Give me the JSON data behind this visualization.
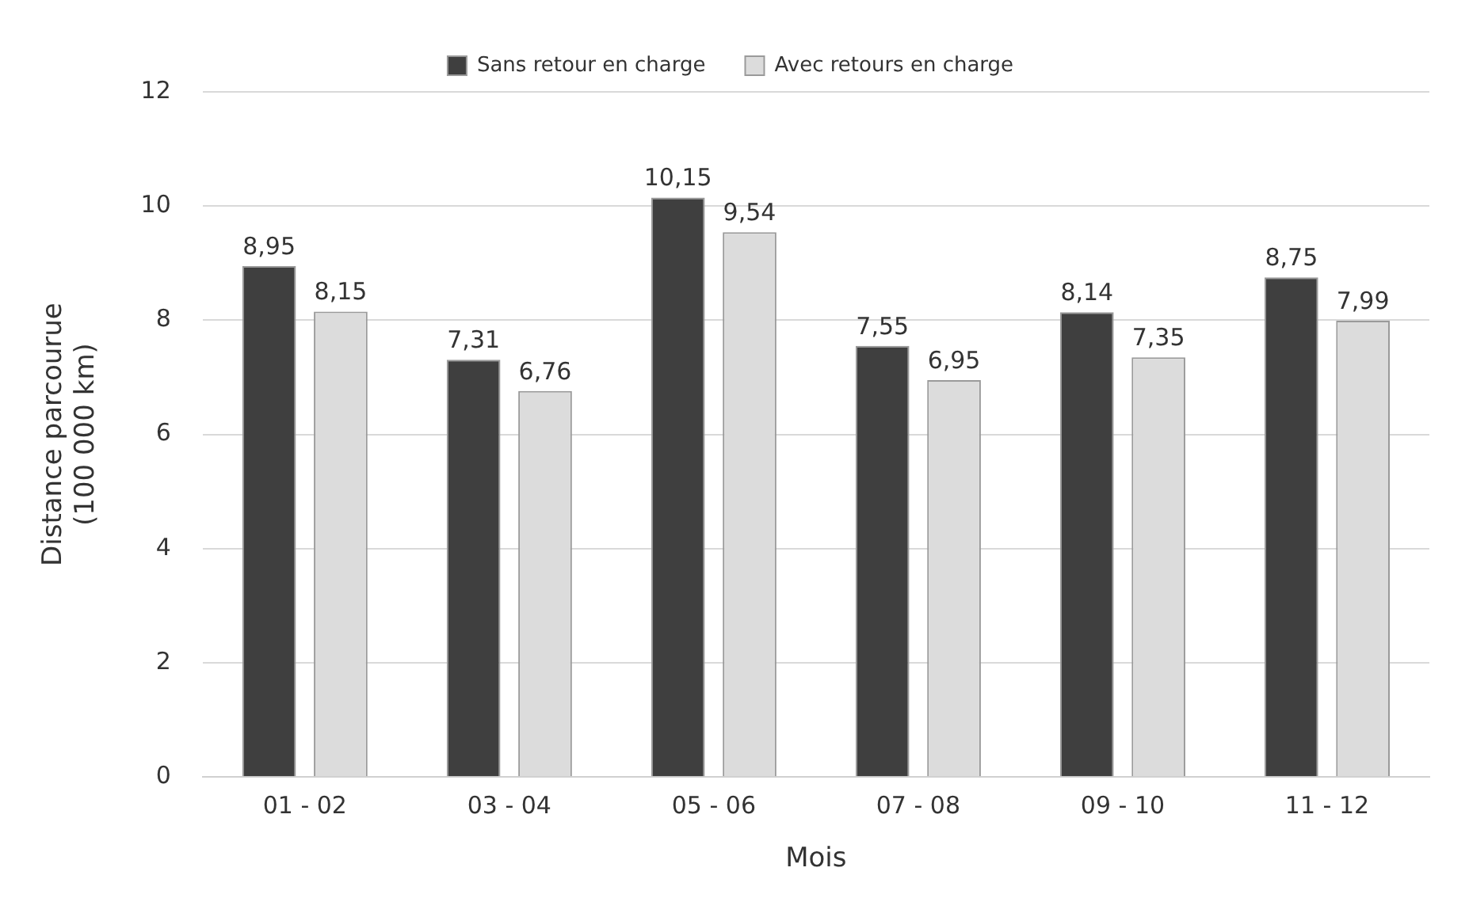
{
  "chart_data": {
    "type": "bar",
    "xlabel": "Mois",
    "ylabel": "Distance parcourue\n(100 000 km)",
    "categories": [
      "01 - 02",
      "03 - 04",
      "05 - 06",
      "07 - 08",
      "09 - 10",
      "11 - 12"
    ],
    "series": [
      {
        "name": "Sans retour en charge",
        "color": "#3f3f3f",
        "values": [
          8.95,
          7.31,
          10.15,
          7.55,
          8.14,
          8.75
        ],
        "value_labels": [
          "8,95",
          "7,31",
          "10,15",
          "7,55",
          "8,14",
          "8,75"
        ]
      },
      {
        "name": "Avec retours en charge",
        "color": "#dcdcdc",
        "values": [
          8.15,
          6.76,
          9.54,
          6.95,
          7.35,
          7.99
        ],
        "value_labels": [
          "8,15",
          "6,76",
          "9,54",
          "6,95",
          "7,35",
          "7,99"
        ]
      }
    ],
    "ylim": [
      0,
      12
    ],
    "yticks": [
      0,
      2,
      4,
      6,
      8,
      10,
      12
    ],
    "grid": "y",
    "legend": "top"
  }
}
